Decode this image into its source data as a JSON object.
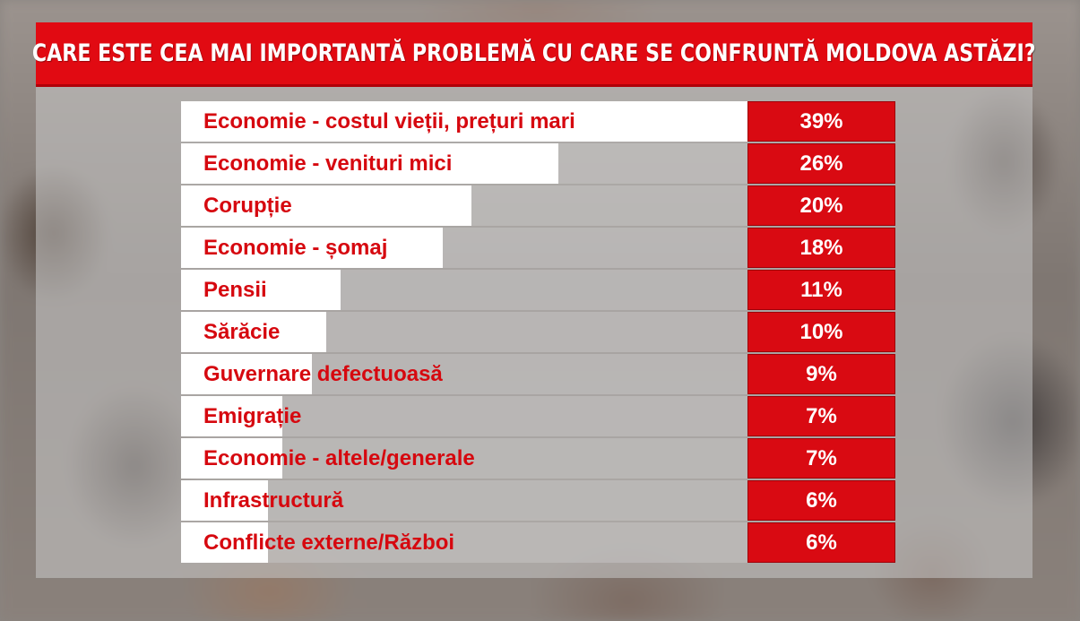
{
  "title": "CARE ESTE CEA MAI IMPORTANTĂ PROBLEMĂ CU CARE SE CONFRUNTĂ MOLDOVA ASTĂZI?",
  "colors": {
    "accent": "#e10a12",
    "label_text": "#d6080f",
    "bar_fill": "#ffffff"
  },
  "chart_data": {
    "type": "bar",
    "orientation": "horizontal",
    "title": "CARE ESTE CEA MAI IMPORTANTĂ PROBLEMĂ CU CARE SE CONFRUNTĂ MOLDOVA ASTĂZI?",
    "categories": [
      "Economie - costul vieții, prețuri mari",
      "Economie - venituri mici",
      "Corupție",
      "Economie - șomaj",
      "Pensii",
      "Sărăcie",
      "Guvernare defectuoasă",
      "Emigrație",
      "Economie - altele/generale",
      "Infrastructură",
      "Conflicte externe/Război"
    ],
    "values": [
      39,
      26,
      20,
      18,
      11,
      10,
      9,
      7,
      7,
      6,
      6
    ],
    "value_labels": [
      "39%",
      "26%",
      "20%",
      "18%",
      "11%",
      "10%",
      "9%",
      "7%",
      "7%",
      "6%",
      "6%"
    ],
    "unit": "%"
  }
}
